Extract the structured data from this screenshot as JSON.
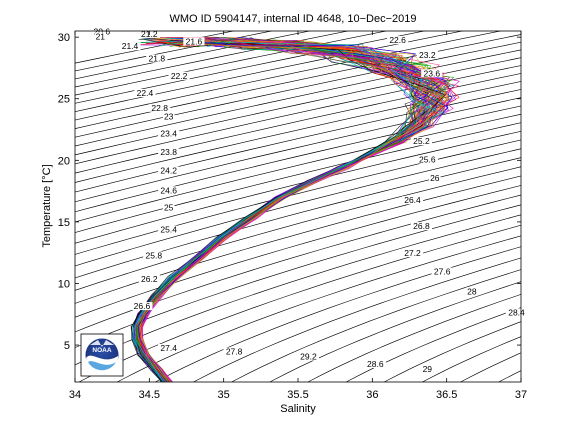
{
  "chart_data": {
    "type": "line",
    "title": "WMO ID 5904147, internal ID 4648, 10−Dec−2019",
    "xlabel": "Salinity",
    "ylabel": "Temperature [°C]",
    "xlim": [
      34,
      37
    ],
    "ylim": [
      2,
      30.5
    ],
    "xticks": [
      "34",
      "34.5",
      "35",
      "35.5",
      "36",
      "36.5",
      "37"
    ],
    "yticks": [
      "5",
      "10",
      "15",
      "20",
      "25",
      "30"
    ],
    "grid": false,
    "legend": "none",
    "isopycnals": {
      "description_units": "sigma-theta (kg/m^3)",
      "levels": [
        20.4,
        20.6,
        20.8,
        21.0,
        21.2,
        21.4,
        21.6,
        21.8,
        22.0,
        22.2,
        22.4,
        22.6,
        22.8,
        23.0,
        23.2,
        23.4,
        23.6,
        23.8,
        24.0,
        24.2,
        24.4,
        24.6,
        24.8,
        25.0,
        25.2,
        25.4,
        25.6,
        25.8,
        26.0,
        26.2,
        26.4,
        26.6,
        26.8,
        27.0,
        27.2,
        27.4,
        27.6,
        27.8,
        28.0,
        28.2,
        28.4,
        28.6,
        28.8,
        29.0,
        29.2,
        29.4
      ],
      "labels": [
        {
          "text": "20.6",
          "s": 34.18,
          "t": 30.3
        },
        {
          "text": "21",
          "s": 34.17,
          "t": 29.9
        },
        {
          "text": "21.2",
          "s": 34.5,
          "t": 30.1
        },
        {
          "text": "21.4",
          "s": 34.37,
          "t": 29.1
        },
        {
          "text": "21.6",
          "s": 34.8,
          "t": 29.5
        },
        {
          "text": "21.8",
          "s": 34.55,
          "t": 28.1
        },
        {
          "text": "22.2",
          "s": 34.7,
          "t": 26.7
        },
        {
          "text": "22.4",
          "s": 34.47,
          "t": 25.3
        },
        {
          "text": "22.6",
          "s": 36.17,
          "t": 29.6
        },
        {
          "text": "22.8",
          "s": 34.57,
          "t": 24.1
        },
        {
          "text": "23",
          "s": 34.63,
          "t": 23.4
        },
        {
          "text": "23.2",
          "s": 36.37,
          "t": 28.4
        },
        {
          "text": "23.4",
          "s": 34.63,
          "t": 22.0
        },
        {
          "text": "23.6",
          "s": 36.4,
          "t": 26.9
        },
        {
          "text": "23.8",
          "s": 34.63,
          "t": 20.5
        },
        {
          "text": "24.2",
          "s": 34.63,
          "t": 19.0
        },
        {
          "text": "24.6",
          "s": 34.63,
          "t": 17.4
        },
        {
          "text": "25.2",
          "s": 36.33,
          "t": 21.4
        },
        {
          "text": "25.6",
          "s": 36.37,
          "t": 19.9
        },
        {
          "text": "25",
          "s": 34.63,
          "t": 16.0
        },
        {
          "text": "26",
          "s": 36.42,
          "t": 18.4
        },
        {
          "text": "25.4",
          "s": 34.63,
          "t": 14.2
        },
        {
          "text": "26.4",
          "s": 36.27,
          "t": 16.6
        },
        {
          "text": "25.8",
          "s": 34.53,
          "t": 12.1
        },
        {
          "text": "26.8",
          "s": 36.33,
          "t": 14.5
        },
        {
          "text": "26.2",
          "s": 34.5,
          "t": 10.2
        },
        {
          "text": "27.2",
          "s": 36.27,
          "t": 12.3
        },
        {
          "text": "26.6",
          "s": 34.45,
          "t": 8.0
        },
        {
          "text": "27.6",
          "s": 36.47,
          "t": 10.8
        },
        {
          "text": "28",
          "s": 36.67,
          "t": 9.2
        },
        {
          "text": "27.4",
          "s": 34.63,
          "t": 4.6
        },
        {
          "text": "28.4",
          "s": 36.97,
          "t": 7.5
        },
        {
          "text": "27.8",
          "s": 35.07,
          "t": 4.3
        },
        {
          "text": "28.8",
          "s": 37.13,
          "t": 5.4
        },
        {
          "text": "29.2",
          "s": 35.57,
          "t": 3.9
        },
        {
          "text": "28.6",
          "s": 36.02,
          "t": 3.3
        },
        {
          "text": "29",
          "s": 36.37,
          "t": 2.9
        },
        {
          "text": "29.2",
          "s": 37.3,
          "t": 4.4
        },
        {
          "text": "29.4",
          "s": 37.23,
          "t": 2.3
        }
      ]
    },
    "profile_envelope": {
      "note": "Approximate T-S trace of the float profiles (salinity vs temperature)",
      "mean_trace": [
        [
          34.62,
          2.0
        ],
        [
          34.55,
          3.0
        ],
        [
          34.47,
          4.2
        ],
        [
          34.42,
          5.5
        ],
        [
          34.42,
          6.5
        ],
        [
          34.46,
          7.5
        ],
        [
          34.55,
          9.0
        ],
        [
          34.67,
          10.5
        ],
        [
          34.82,
          12.0
        ],
        [
          35.0,
          13.8
        ],
        [
          35.18,
          15.3
        ],
        [
          35.38,
          17.0
        ],
        [
          35.6,
          18.3
        ],
        [
          35.8,
          19.4
        ],
        [
          35.95,
          20.3
        ],
        [
          36.15,
          21.5
        ],
        [
          36.3,
          22.8
        ],
        [
          36.38,
          24.2
        ],
        [
          36.4,
          25.2
        ],
        [
          36.35,
          26.4
        ],
        [
          36.22,
          27.4
        ],
        [
          36.0,
          28.3
        ],
        [
          35.7,
          29.0
        ],
        [
          35.3,
          29.4
        ],
        [
          34.95,
          29.6
        ],
        [
          34.7,
          29.6
        ]
      ],
      "profile_count": 90
    },
    "logo": "NOAA"
  }
}
